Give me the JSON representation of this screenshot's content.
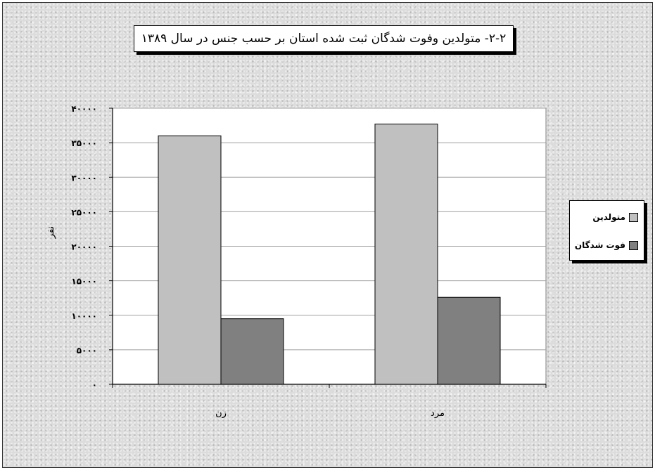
{
  "chart_data": {
    "type": "bar",
    "title": "۲-۲- متولدین وفوت شدگان ثبت شده استان  بر حسب جنس در سال ۱۳۸۹",
    "xlabel": "",
    "ylabel": "نفر",
    "categories": [
      "زن",
      "مرد"
    ],
    "series": [
      {
        "name": "متولدین",
        "values": [
          36000,
          37700
        ],
        "color": "#c0c0c0"
      },
      {
        "name": "فوت شدگان",
        "values": [
          9500,
          12600
        ],
        "color": "#808080"
      }
    ],
    "ylim": [
      0,
      40000
    ],
    "yticks": [
      0,
      5000,
      10000,
      15000,
      20000,
      25000,
      30000,
      35000,
      40000
    ],
    "ytick_labels": [
      "۰",
      "۵۰۰۰",
      "۱۰۰۰۰",
      "۱۵۰۰۰",
      "۲۰۰۰۰",
      "۲۵۰۰۰",
      "۳۰۰۰۰",
      "۳۵۰۰۰",
      "۴۰۰۰۰"
    ],
    "grid": true,
    "legend_position": "right",
    "plot_background": "#ffffff"
  }
}
